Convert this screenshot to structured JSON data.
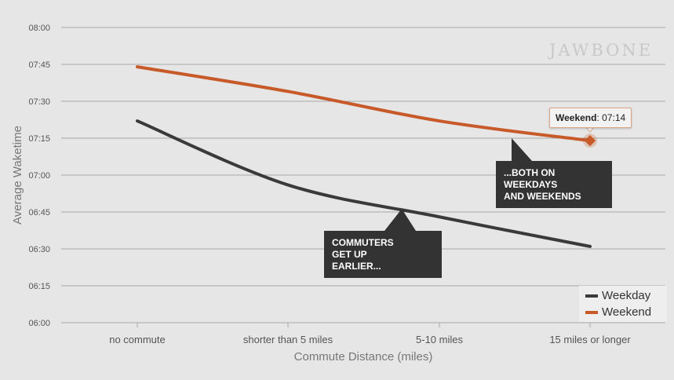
{
  "chart_data": {
    "type": "line",
    "xlabel": "Commute Distance (miles)",
    "ylabel": "Average Waketime",
    "categories": [
      "no commute",
      "shorter than 5 miles",
      "5-10 miles",
      "15 miles or longer"
    ],
    "yticks": [
      "06:00",
      "06:15",
      "06:30",
      "06:45",
      "07:00",
      "07:15",
      "07:30",
      "07:45",
      "08:00"
    ],
    "ylim": [
      "06:00",
      "08:00"
    ],
    "grid": true,
    "legend_position": "bottom-right",
    "series": [
      {
        "name": "Weekday",
        "color": "#3a3a3a",
        "values": [
          "07:22",
          "06:56",
          "06:43",
          "06:31"
        ]
      },
      {
        "name": "Weekend",
        "color": "#c85a2a",
        "values": [
          "07:44",
          "07:34",
          "07:22",
          "07:14"
        ]
      }
    ],
    "tooltip": {
      "series": "Weekend",
      "value": "07:14"
    },
    "annotations": [
      {
        "lines": [
          "COMMUTERS",
          "GET UP",
          "EARLIER..."
        ]
      },
      {
        "lines": [
          "...BOTH ON",
          "WEEKDAYS",
          "AND WEEKENDS"
        ]
      }
    ]
  },
  "logo": "JAWBONE"
}
